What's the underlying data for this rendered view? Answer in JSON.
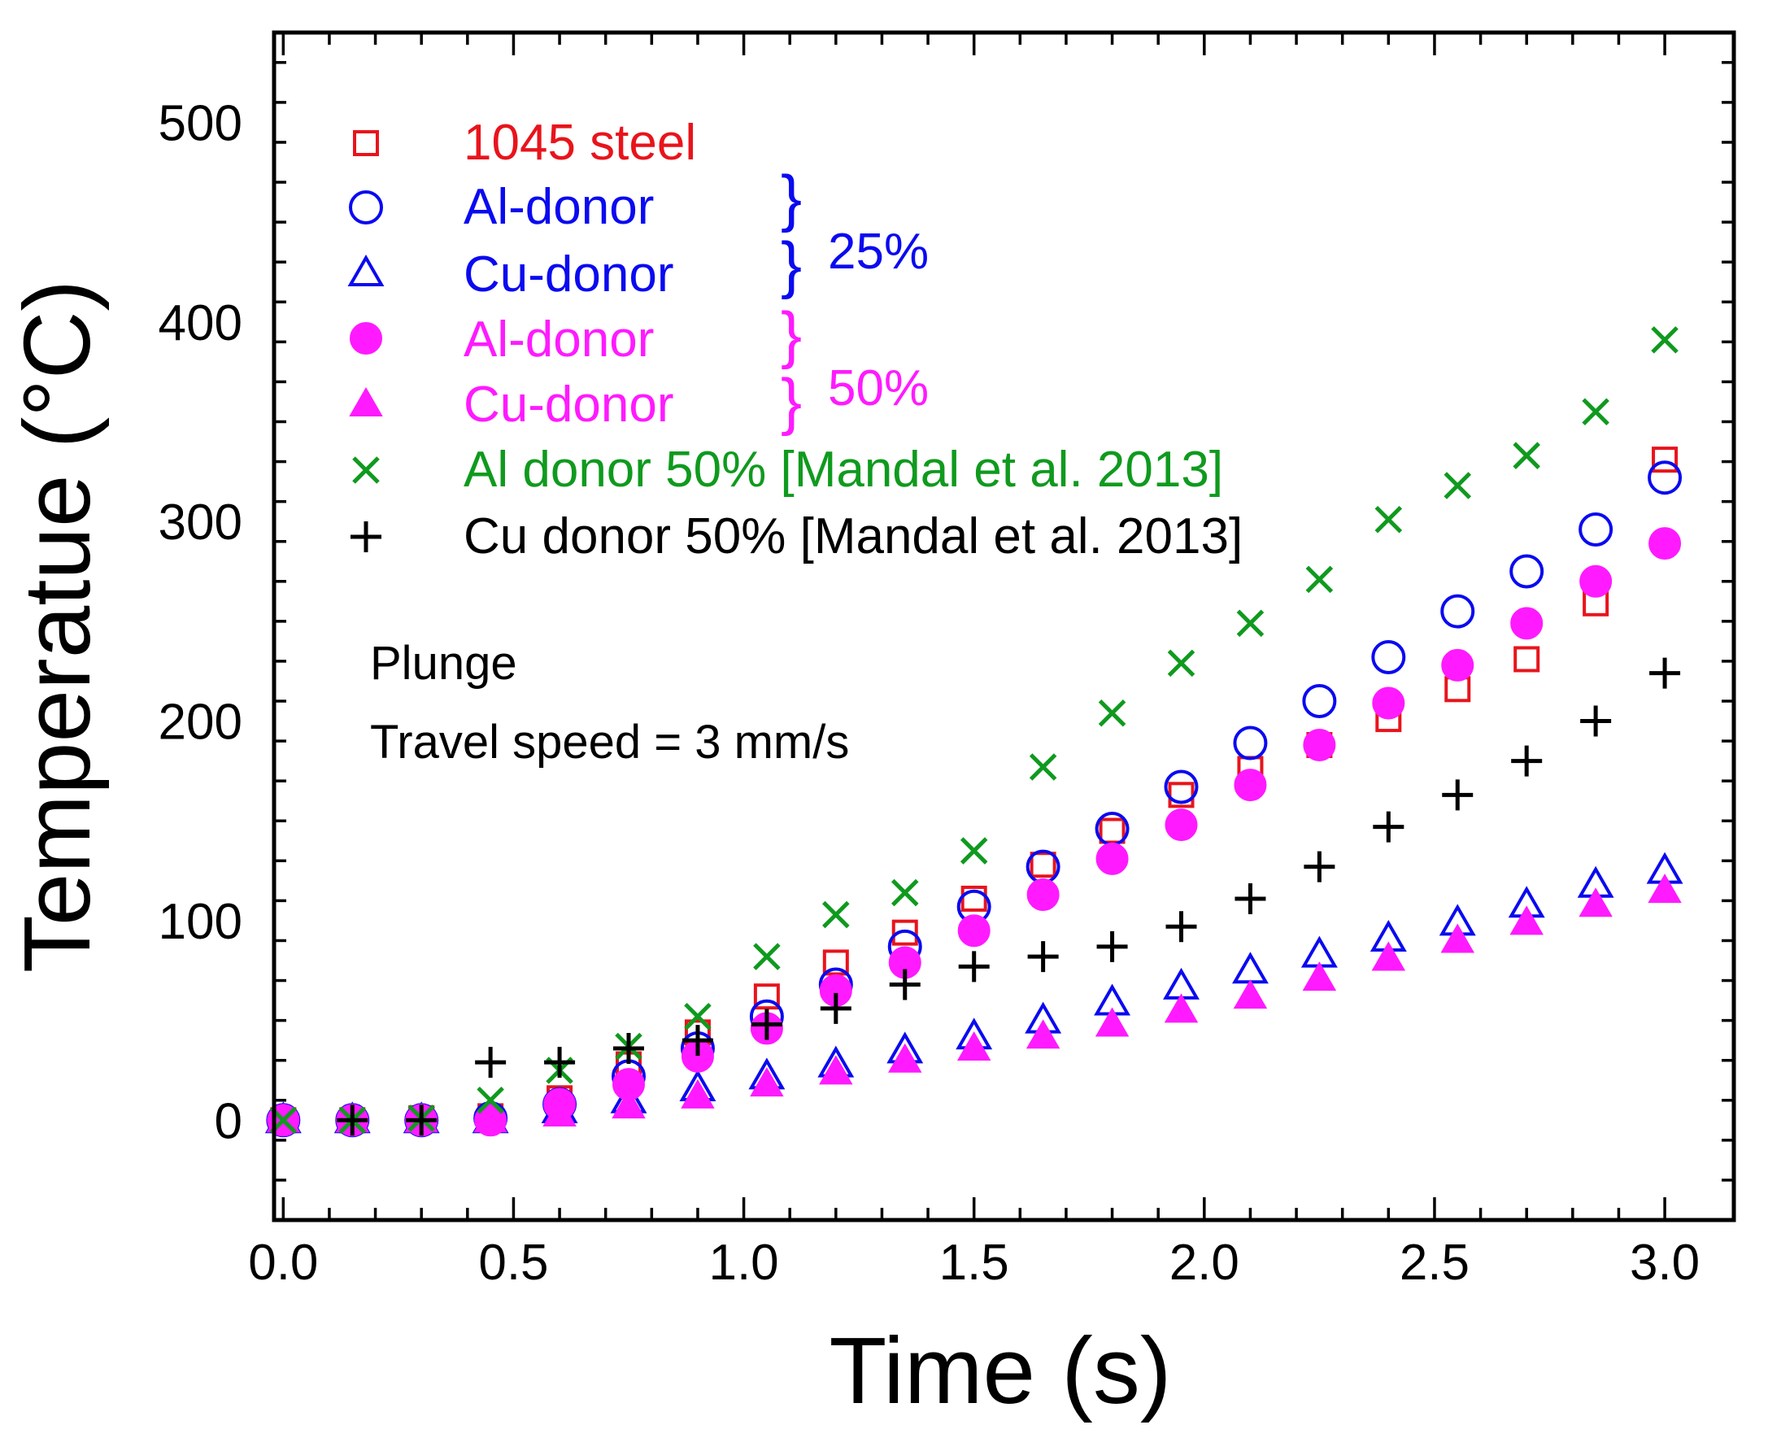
{
  "chart_data": {
    "type": "scatter",
    "title": "",
    "xlabel": "Time (s)",
    "ylabel": "Temperatue (°C)",
    "xlim": [
      -0.02,
      3.15
    ],
    "ylim": [
      -50,
      545
    ],
    "xticks": [
      0.0,
      0.5,
      1.0,
      1.5,
      2.0,
      2.5,
      3.0
    ],
    "xtick_labels": [
      "0.0",
      "0.5",
      "1.0",
      "1.5",
      "2.0",
      "2.5",
      "3.0"
    ],
    "yticks": [
      0,
      100,
      200,
      300,
      400,
      500
    ],
    "ytick_labels": [
      "0",
      "100",
      "200",
      "300",
      "400",
      "500"
    ],
    "grid": false,
    "legend_position": "top-left",
    "series": [
      {
        "name": "1045 steel",
        "marker": "square-open",
        "color": "#e8141c",
        "x": [
          0,
          0.15,
          0.3,
          0.45,
          0.6,
          0.75,
          0.9,
          1.05,
          1.2,
          1.35,
          1.5,
          1.65,
          1.8,
          1.95,
          2.1,
          2.25,
          2.4,
          2.55,
          2.7,
          2.85,
          3.0
        ],
        "y": [
          0,
          0,
          1,
          2,
          11,
          28,
          44,
          62,
          79,
          94,
          111,
          128,
          145,
          163,
          176,
          188,
          201,
          216,
          231,
          259,
          331
        ]
      },
      {
        "name": "Al-donor",
        "group": "25%",
        "marker": "circle-open",
        "color": "#0a0af0",
        "x": [
          0,
          0.15,
          0.3,
          0.45,
          0.6,
          0.75,
          0.9,
          1.05,
          1.2,
          1.35,
          1.5,
          1.65,
          1.8,
          1.95,
          2.1,
          2.25,
          2.4,
          2.55,
          2.7,
          2.85,
          3.0
        ],
        "y": [
          0,
          0,
          0,
          1,
          8,
          22,
          36,
          52,
          68,
          87,
          107,
          127,
          146,
          167,
          189,
          210,
          232,
          255,
          275,
          296,
          322
        ]
      },
      {
        "name": "Cu-donor",
        "group": "25%",
        "marker": "triangle-open",
        "color": "#0a0af0",
        "x": [
          0,
          0.15,
          0.3,
          0.45,
          0.6,
          0.75,
          0.9,
          1.05,
          1.2,
          1.35,
          1.5,
          1.65,
          1.8,
          1.95,
          2.1,
          2.25,
          2.4,
          2.55,
          2.7,
          2.85,
          3.0
        ],
        "y": [
          0,
          0,
          0,
          0,
          5,
          10,
          16,
          22,
          28,
          35,
          42,
          50,
          59,
          67,
          75,
          83,
          91,
          99,
          108,
          118,
          125
        ]
      },
      {
        "name": "Al-donor",
        "group": "50%",
        "marker": "circle-filled",
        "color": "#ff1aff",
        "x": [
          0,
          0.15,
          0.3,
          0.45,
          0.6,
          0.75,
          0.9,
          1.05,
          1.2,
          1.35,
          1.5,
          1.65,
          1.8,
          1.95,
          2.1,
          2.25,
          2.4,
          2.55,
          2.7,
          2.85,
          3.0
        ],
        "y": [
          0,
          0,
          0,
          0,
          8,
          18,
          32,
          46,
          65,
          79,
          95,
          113,
          131,
          148,
          168,
          188,
          209,
          228,
          249,
          270,
          289
        ]
      },
      {
        "name": "Cu-donor",
        "group": "50%",
        "marker": "triangle-filled",
        "color": "#ff1aff",
        "x": [
          0,
          0.15,
          0.3,
          0.45,
          0.6,
          0.75,
          0.9,
          1.05,
          1.2,
          1.35,
          1.5,
          1.65,
          1.8,
          1.95,
          2.1,
          2.25,
          2.4,
          2.55,
          2.7,
          2.85,
          3.0
        ],
        "y": [
          0,
          0,
          0,
          0,
          3,
          7,
          12,
          18,
          24,
          30,
          36,
          42,
          48,
          55,
          62,
          71,
          81,
          90,
          99,
          108,
          115
        ]
      },
      {
        "name": "Al donor 50% [Mandal et al. 2013]",
        "marker": "x-cross",
        "color": "#0f9a1e",
        "x": [
          0,
          0.15,
          0.3,
          0.45,
          0.6,
          0.75,
          0.9,
          1.05,
          1.2,
          1.35,
          1.5,
          1.65,
          1.8,
          1.95,
          2.1,
          2.25,
          2.4,
          2.55,
          2.7,
          2.85,
          3.0
        ],
        "y": [
          0,
          0,
          1,
          10,
          25,
          37,
          52,
          82,
          103,
          114,
          135,
          177,
          204,
          229,
          249,
          271,
          301,
          318,
          333,
          355,
          391
        ]
      },
      {
        "name": "Cu donor 50% [Mandal et al. 2013]",
        "marker": "plus",
        "color": "#000000",
        "x": [
          0.15,
          0.3,
          0.45,
          0.6,
          0.75,
          0.9,
          1.05,
          1.2,
          1.35,
          1.5,
          1.65,
          1.8,
          1.95,
          2.1,
          2.25,
          2.4,
          2.55,
          2.7,
          2.85,
          3.0
        ],
        "y": [
          0,
          0,
          29,
          29,
          36,
          40,
          48,
          56,
          68,
          77,
          82,
          87,
          97,
          111,
          127,
          147,
          163,
          180,
          200,
          224
        ]
      }
    ],
    "group_labels": [
      {
        "text": "25%",
        "color": "#0a0af0",
        "members": [
          1,
          2
        ]
      },
      {
        "text": "50%",
        "color": "#ff1aff",
        "members": [
          3,
          4
        ]
      }
    ],
    "annotations": [
      "Plunge",
      "Travel speed = 3 mm/s"
    ]
  }
}
